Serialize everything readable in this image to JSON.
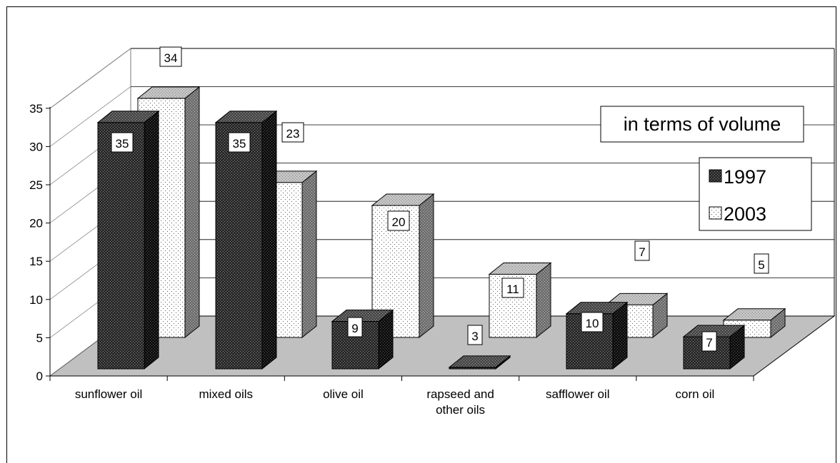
{
  "chart_data": {
    "type": "bar",
    "title": "",
    "annotation": "in terms of volume",
    "xlabel": "",
    "ylabel": "",
    "ylim": [
      0,
      35
    ],
    "yticks": [
      "0",
      "5",
      "10",
      "15",
      "20",
      "25",
      "30",
      "35"
    ],
    "categories": [
      "sunflower oil",
      "mixed oils",
      "olive oil",
      "rapseed and other oils",
      "safflower oil",
      "corn oil"
    ],
    "category_lines": [
      [
        "sunflower oil"
      ],
      [
        "mixed oils"
      ],
      [
        "olive oil"
      ],
      [
        "rapseed and",
        "other oils"
      ],
      [
        "safflower oil"
      ],
      [
        "corn oil"
      ]
    ],
    "series": [
      {
        "name": "1997",
        "values": [
          35,
          35,
          9,
          3,
          10,
          7
        ],
        "labels": [
          "35",
          "35",
          "9",
          "3",
          "10",
          "7"
        ]
      },
      {
        "name": "2003",
        "values": [
          34,
          23,
          20,
          11,
          7,
          5
        ],
        "labels": [
          "34",
          "23",
          "20",
          "11",
          "7",
          "5"
        ]
      }
    ],
    "legend_position": "right",
    "grid": true,
    "projection": "3d"
  },
  "colors": {
    "floor": "#c0c0c0",
    "front_dark": "#2b2b2b",
    "side_dark": "#111111",
    "top_dark": "#555555",
    "front_light": "#ffffff",
    "side_light": "#7a7a7a",
    "top_light": "#c8c8c8"
  }
}
